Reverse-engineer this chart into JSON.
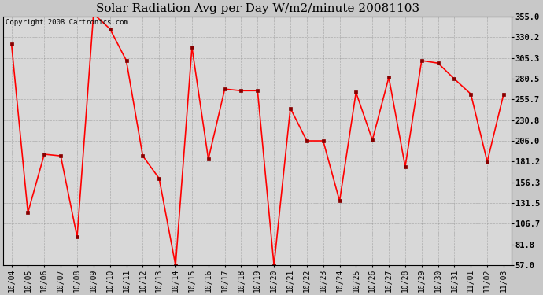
{
  "title": "Solar Radiation Avg per Day W/m2/minute 20081103",
  "copyright": "Copyright 2008 Cartronics.com",
  "x_labels": [
    "10/04",
    "10/05",
    "10/06",
    "10/07",
    "10/08",
    "10/09",
    "10/10",
    "10/11",
    "10/12",
    "10/13",
    "10/14",
    "10/15",
    "10/16",
    "10/17",
    "10/18",
    "10/19",
    "10/20",
    "10/21",
    "10/22",
    "10/23",
    "10/24",
    "10/25",
    "10/26",
    "10/27",
    "10/28",
    "10/29",
    "10/30",
    "10/31",
    "11/01",
    "11/02",
    "11/03"
  ],
  "y_values": [
    322,
    120,
    190,
    188,
    91,
    358,
    340,
    302,
    188,
    161,
    57,
    318,
    184,
    268,
    266,
    266,
    57,
    245,
    206,
    206,
    134,
    264,
    207,
    282,
    175,
    302,
    299,
    280,
    262,
    181,
    262
  ],
  "y_min": 57.0,
  "y_max": 355.0,
  "y_ticks": [
    57.0,
    81.8,
    106.7,
    131.5,
    156.3,
    181.2,
    206.0,
    230.8,
    255.7,
    280.5,
    305.3,
    330.2,
    355.0
  ],
  "line_color": "#ff0000",
  "marker_color": "#880000",
  "fig_bg": "#c8c8c8",
  "plot_bg": "#d8d8d8",
  "grid_color": "#999999",
  "title_fontsize": 11,
  "copyright_fontsize": 6.5,
  "tick_fontsize": 7,
  "ytick_fontsize": 7.5
}
